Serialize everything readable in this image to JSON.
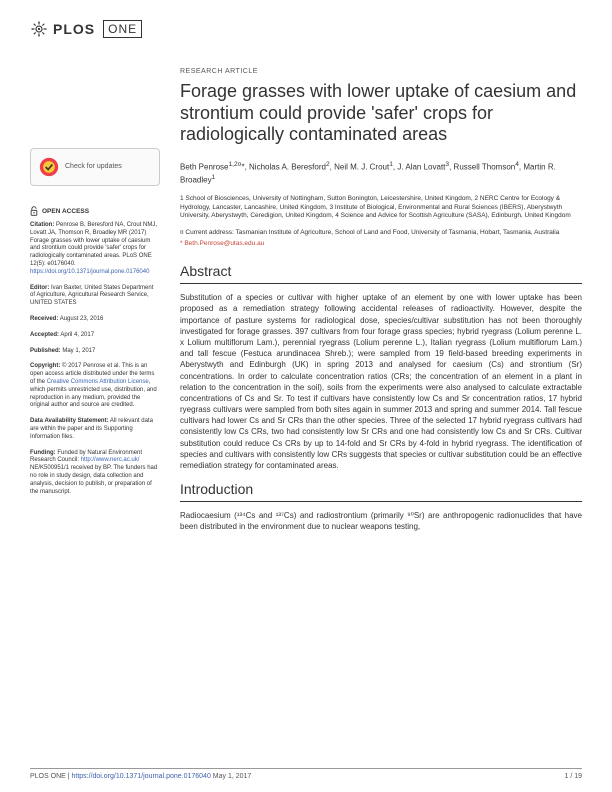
{
  "journal": {
    "name": "PLOS",
    "sub": "ONE"
  },
  "article_type": "RESEARCH ARTICLE",
  "title": "Forage grasses with lower uptake of caesium and strontium could provide 'safer' crops for radiologically contaminated areas",
  "authors_html": "Beth Penrose<sup>1,2¤</sup>*, Nicholas A. Beresford<sup>2</sup>, Neil M. J. Crout<sup>1</sup>, J. Alan Lovatt<sup>3</sup>, Russell Thomson<sup>4</sup>, Martin R. Broadley<sup>1</sup>",
  "affiliations": "1 School of Biosciences, University of Nottingham, Sutton Bonington, Leicestershire, United Kingdom, 2 NERC Centre for Ecology & Hydrology, Lancaster, Lancashire, United Kingdom, 3 Institute of Biological, Environmental and Rural Sciences (IBERS), Aberystwyth University, Aberystwyth, Ceredigion, United Kingdom, 4 Science and Advice for Scottish Agriculture (SASA), Edinburgh, United Kingdom",
  "current_address": "¤ Current address: Tasmanian Institute of Agriculture, School of Land and Food, University of Tasmania, Hobart, Tasmania, Australia",
  "corr_email": "* Beth.Penrose@utas.edu.au",
  "check_updates": "Check for updates",
  "sidebar": {
    "open_access": "OPEN ACCESS",
    "citation_label": "Citation:",
    "citation": " Penrose B, Beresford NA, Crout NMJ, Lovatt JA, Thomson R, Broadley MR (2017) Forage grasses with lower uptake of caesium and strontium could provide 'safer' crops for radiologically contaminated areas. PLoS ONE 12(5): e0176040. ",
    "citation_link": "https://doi.org/10.1371/journal.pone.0176040",
    "editor_label": "Editor:",
    "editor": " Ivan Baxter, United States Department of Agriculture, Agricultural Research Service, UNITED STATES",
    "received_label": "Received:",
    "received": " August 23, 2016",
    "accepted_label": "Accepted:",
    "accepted": " April 4, 2017",
    "published_label": "Published:",
    "published": " May 1, 2017",
    "copyright_label": "Copyright:",
    "copyright_pre": " © 2017 Penrose et al. This is an open access article distributed under the terms of the ",
    "copyright_link": "Creative Commons Attribution License",
    "copyright_post": ", which permits unrestricted use, distribution, and reproduction in any medium, provided the original author and source are credited.",
    "data_label": "Data Availability Statement:",
    "data": " All relevant data are within the paper and its Supporting Information files.",
    "funding_label": "Funding:",
    "funding_pre": " Funded by Natural Environment Research Council: ",
    "funding_link": "http://www.nerc.ac.uk/",
    "funding_post": " NE/K500951/1 received by BP. The funders had no role in study design, data collection and analysis, decision to publish, or preparation of the manuscript."
  },
  "abstract_heading": "Abstract",
  "abstract": "Substitution of a species or cultivar with higher uptake of an element by one with lower uptake has been proposed as a remediation strategy following accidental releases of radioactivity. However, despite the importance of pasture systems for radiological dose, species/cultivar substitution has not been thoroughly investigated for forage grasses. 397 cultivars from four forage grass species; hybrid ryegrass (Lolium perenne L. x Lolium multiflorum Lam.), perennial ryegrass (Lolium perenne L.), Italian ryegrass (Lolium multiflorum Lam.) and tall fescue (Festuca arundinacea Shreb.); were sampled from 19 field-based breeding experiments in Aberystwyth and Edinburgh (UK) in spring 2013 and analysed for caesium (Cs) and strontium (Sr) concentrations. In order to calculate concentration ratios (CRs; the concentration of an element in a plant in relation to the concentration in the soil), soils from the experiments were also analysed to calculate extractable concentrations of Cs and Sr. To test if cultivars have consistently low Cs and Sr concentration ratios, 17 hybrid ryegrass cultivars were sampled from both sites again in summer 2013 and spring and summer 2014. Tall fescue cultivars had lower Cs and Sr CRs than the other species. Three of the selected 17 hybrid ryegrass cultivars had consistently low Cs CRs, two had consistently low Sr CRs and one had consistently low Cs and Sr CRs. Cultivar substitution could reduce Cs CRs by up to 14-fold and Sr CRs by 4-fold in hybrid ryegrass. The identification of species and cultivars with consistently low CRs suggests that species or cultivar substitution could be an effective remediation strategy for contaminated areas.",
  "intro_heading": "Introduction",
  "intro": "Radiocaesium (¹³⁴Cs and ¹³⁷Cs) and radiostrontium (primarily ⁹⁰Sr) are anthropogenic radionuclides that have been distributed in the environment due to nuclear weapons testing,",
  "footer": {
    "left_pre": "PLOS ONE | ",
    "doi": "https://doi.org/10.1371/journal.pone.0176040",
    "date": " May 1, 2017",
    "page": "1 / 19"
  },
  "colors": {
    "link": "#3c63af",
    "corr": "#c74636",
    "text": "#333333"
  }
}
